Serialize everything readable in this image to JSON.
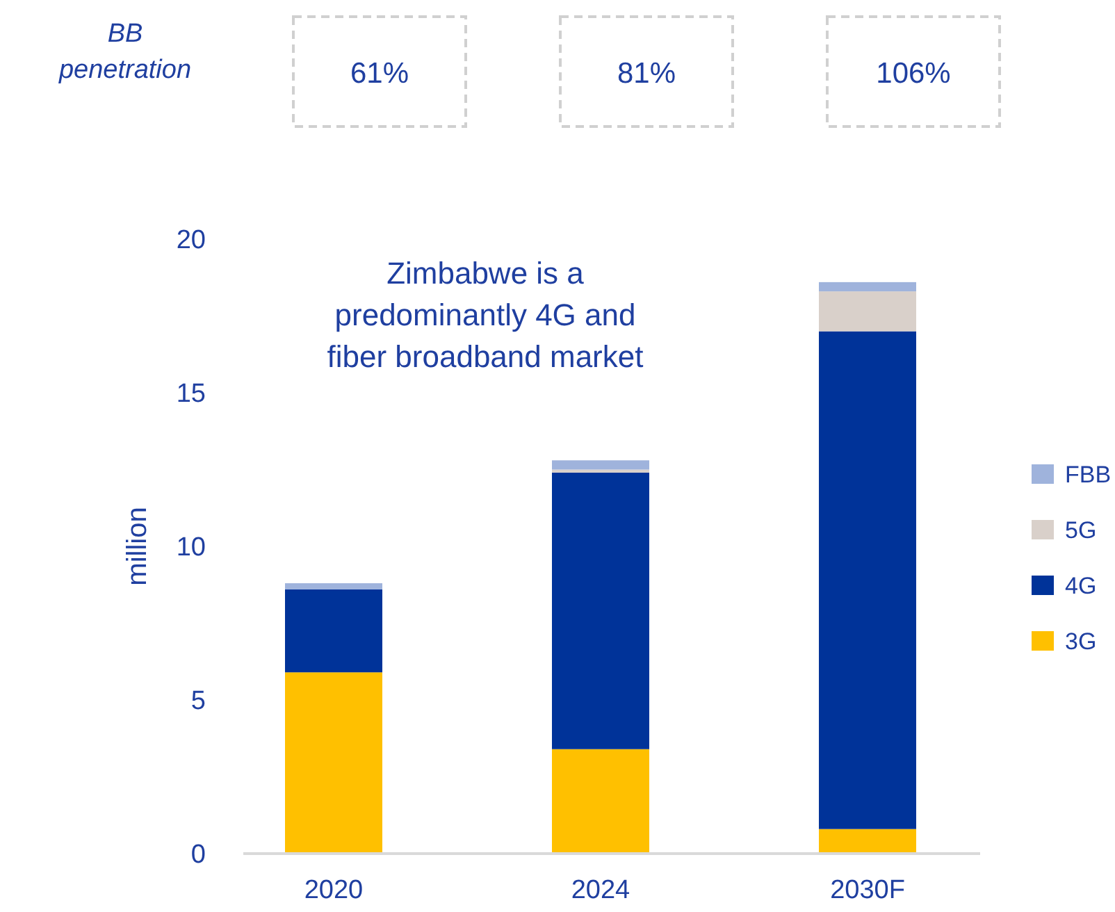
{
  "chart_data": {
    "type": "bar",
    "stacked": true,
    "categories": [
      "2020",
      "2024",
      "2030F"
    ],
    "series": [
      {
        "name": "3G",
        "color": "#ffc000",
        "values": [
          5.9,
          3.4,
          0.8
        ]
      },
      {
        "name": "4G",
        "color": "#003399",
        "values": [
          2.7,
          9.0,
          16.2
        ]
      },
      {
        "name": "5G",
        "color": "#d9d0ca",
        "values": [
          0,
          0.1,
          1.3
        ]
      },
      {
        "name": "FBB",
        "color": "#9fb3dc",
        "values": [
          0.2,
          0.3,
          0.3
        ]
      }
    ],
    "ylim": [
      0,
      20
    ],
    "yticks": [
      0,
      5,
      10,
      15,
      20
    ],
    "ylabel": "million",
    "legend": "right",
    "grid": false,
    "annotations": [
      "BB penetration",
      "61%",
      "81%",
      "106%",
      "Zimbabwe is a predominantly 4G and fiber broadband market"
    ]
  }
}
